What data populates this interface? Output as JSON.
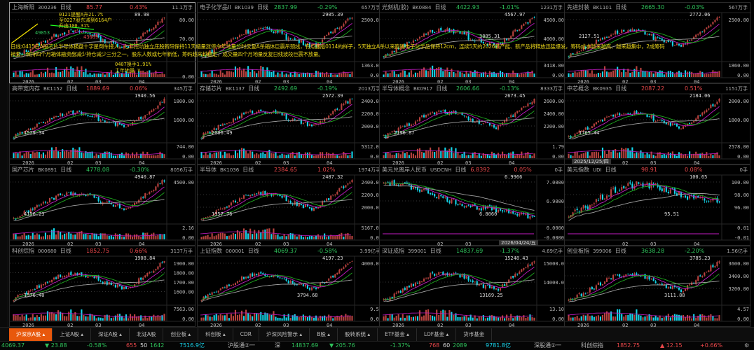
{
  "colors": {
    "up": "#e8474a",
    "down": "#2fc25b",
    "candle_up": "#b8423f",
    "candle_down": "#14d6ea",
    "ma1": "#c21bc2",
    "ma2": "#1fa81f",
    "ma3": "#a0a0a0",
    "accent": "#e8580c"
  },
  "overlay_note": {
    "line1": "日线:0415日A股芯片半导体横盘十字星倒车接人，七年挖坑独立庄股新阳保持11天缩量涨停今年地量分时反复A杀箱体巨震吊颈线，有点翻版0114的样子，5天独立A杀以来跑输电子化学品保持12cm，连续5天的2026新产能、新产品将释放迅猛爆发，筹码成本越来越高、越来越集中，2成筹码",
    "line2": "被套，保持四个月箱体融资盘减少持仓减少三分之一，股东人数或七年新低，筹码越来越稳定，成交量四个月地量反复日线波段巨震不放量。"
  },
  "panels": [
    {
      "name": "上海新阳",
      "code": "300236",
      "period": "日线",
      "price": "85.77",
      "pct": "0.43%",
      "dir": "up",
      "vol": "11.1万手",
      "yticks": [
        "80.00",
        "70.00"
      ],
      "vticks": [
        "0.00"
      ],
      "hi": "89.98",
      "lo": "",
      "xlabels": [
        "2026",
        "02",
        "03",
        "04"
      ],
      "selected": true,
      "notes": [
        "0121提醒A升21.7%",
        "至0227股东减到6164户",
        "升由100.31%",
        "49853",
        "43689",
        "0407换手1.91%",
        "主年地量 V"
      ]
    },
    {
      "name": "电子化学品II",
      "code": "BK1039",
      "period": "日线",
      "price": "2837.99",
      "pct": "-0.29%",
      "dir": "down",
      "vol": "657万手",
      "yticks": [
        "2500.00"
      ],
      "vticks": [
        "1363.00",
        "0.00"
      ],
      "hi": "2905.39",
      "lo": "",
      "xlabels": [
        "2026",
        "02",
        "03",
        "04"
      ]
    },
    {
      "name": "光刻机(胶)",
      "code": "BK0884",
      "period": "日线",
      "price": "4422.93",
      "pct": "-1.01%",
      "dir": "down",
      "vol": "1231万手",
      "yticks": [
        "4500.00",
        "4000.00"
      ],
      "vticks": [
        "3418.00",
        "0.00"
      ],
      "hi": "4567.97",
      "lo": "3885.31",
      "xlabels": [
        "2026",
        "02",
        "03",
        "04"
      ]
    },
    {
      "name": "先进封装",
      "code": "BK1101",
      "period": "日线",
      "price": "2665.30",
      "pct": "-0.03%",
      "dir": "down",
      "vol": "567万手",
      "yticks": [
        "2500.00"
      ],
      "vticks": [
        "1860.00",
        "0.00"
      ],
      "hi": "2772.06",
      "lo": "2127.51",
      "xlabels": [
        "2026",
        "02",
        "03",
        "04"
      ]
    },
    {
      "name": "高带宽内存",
      "code": "BK1152",
      "period": "日线",
      "price": "1889.69",
      "pct": "0.06%",
      "dir": "up",
      "vol": "345万手",
      "yticks": [
        "1800.00",
        "1600.00"
      ],
      "vticks": [
        "744.00",
        "0.00"
      ],
      "hi": "1940.56",
      "lo": "1529.34",
      "xlabels": [
        "2026",
        "02",
        "03",
        "04"
      ]
    },
    {
      "name": "存储芯片",
      "code": "BK1137",
      "period": "日线",
      "price": "2492.69",
      "pct": "-0.19%",
      "dir": "down",
      "vol": "2013万手",
      "yticks": [
        "2400.00",
        "2200.00",
        "2000.00"
      ],
      "vticks": [
        "5312.00",
        "0.00"
      ],
      "hi": "2572.39",
      "lo": "2006.49",
      "xlabels": [
        "2026",
        "02",
        "03",
        "04"
      ]
    },
    {
      "name": "半导体概念",
      "code": "BK0917",
      "period": "日线",
      "price": "2606.66",
      "pct": "-0.13%",
      "dir": "down",
      "vol": "8333万手",
      "yticks": [
        "2600.00",
        "2400.00",
        "2200.00"
      ],
      "vticks": [
        "1.79",
        "0.00"
      ],
      "hi": "2673.45",
      "lo": "2196.87",
      "xlabels": [
        "2026",
        "02",
        "03",
        "04"
      ]
    },
    {
      "name": "中芯概念",
      "code": "BK0935",
      "period": "日线",
      "price": "2087.22",
      "pct": "0.51%",
      "dir": "up",
      "vol": "1151万手",
      "yticks": [
        "2000.00",
        "1800.00"
      ],
      "vticks": [
        "2578.00",
        "0.00"
      ],
      "hi": "2184.06",
      "lo": "1765.44",
      "xlabels": [
        "",
        "02",
        "03",
        "04"
      ],
      "tooltip": "2025/12/25/四"
    },
    {
      "name": "国产芯片",
      "code": "BK0891",
      "period": "日线",
      "price": "4778.08",
      "pct": "-0.30%",
      "dir": "down",
      "vol": "8056万手",
      "yticks": [
        "4500.00"
      ],
      "vticks": [
        "2.16",
        "0.00"
      ],
      "hi": "4940.87",
      "lo": "4156.23",
      "xlabels": [
        "2026",
        "02",
        "03",
        "04"
      ]
    },
    {
      "name": "半导体",
      "code": "BK1036",
      "period": "日线",
      "price": "2384.65",
      "pct": "1.02%",
      "dir": "up",
      "vol": "1974万手",
      "yticks": [
        "2400.00",
        "2200.00",
        "2000.00"
      ],
      "vticks": [
        "5167.00",
        "0.00"
      ],
      "hi": "2487.32",
      "lo": "1957.76",
      "xlabels": [
        "2026",
        "02",
        "03",
        "04"
      ]
    },
    {
      "name": "美元兑离岸人民币",
      "code": "USDCNH",
      "period": "日线",
      "price": "6.8392",
      "pct": "0.05%",
      "dir": "up",
      "vol": "0手",
      "yticks": [
        "7.0000",
        "6.9000"
      ],
      "vticks": [
        "0.0000",
        "-0.0000"
      ],
      "hi": "6.9966",
      "lo": "6.8060",
      "xlabels": [
        "",
        "02",
        "03",
        ""
      ],
      "tooltip": "2026/04/24/五",
      "flat": true
    },
    {
      "name": "美元指数",
      "code": "UDI",
      "period": "日线",
      "price": "98.91",
      "pct": "0.08%",
      "dir": "up",
      "vol": "0手",
      "yticks": [
        "100.00",
        "98.00",
        "96.00"
      ],
      "vticks": [
        "0.01",
        "-0.01"
      ],
      "hi": "100.65",
      "lo": "95.51",
      "xlabels": [
        "",
        "02",
        "03",
        "04"
      ],
      "flat": true
    },
    {
      "name": "科创综指",
      "code": "000680",
      "period": "日线",
      "price": "1852.75",
      "pct": "0.66%",
      "dir": "up",
      "vol": "3137万手",
      "yticks": [
        "1900.00",
        "1800.00",
        "1700.00",
        "1600.00"
      ],
      "vticks": [
        "7563.00",
        "0.00"
      ],
      "hi": "1908.84",
      "lo": "1576.40",
      "xlabels": [
        "2026",
        "02",
        "03",
        "04"
      ]
    },
    {
      "name": "上证指数",
      "code": "000001",
      "period": "日线",
      "price": "4069.37",
      "pct": "-0.58%",
      "dir": "down",
      "vol": "3.99亿手",
      "yticks": [
        "4000.00"
      ],
      "vticks": [
        "9.53",
        "0.00"
      ],
      "hi": "4197.23",
      "lo": "3794.68",
      "xlabels": [
        "2026",
        "02",
        "03",
        "04"
      ]
    },
    {
      "name": "深证成指",
      "code": "399001",
      "period": "日线",
      "price": "14837.69",
      "pct": "-1.37%",
      "dir": "down",
      "vol": "4.69亿手",
      "yticks": [
        "15000.0",
        "14000.0"
      ],
      "vticks": [
        "13.10",
        "0.00"
      ],
      "hi": "15248.43",
      "lo": "13169.25",
      "xlabels": [
        "2026",
        "02",
        "03",
        "04"
      ]
    },
    {
      "name": "创业板指",
      "code": "399006",
      "period": "日线",
      "price": "3638.28",
      "pct": "-2.20%",
      "dir": "down",
      "vol": "1.56亿手",
      "yticks": [
        "3600.00",
        "3400.00",
        "3200.00"
      ],
      "vticks": [
        "4.57",
        "0.00"
      ],
      "hi": "3785.23",
      "lo": "3111.88",
      "xlabels": [
        "2026",
        "02",
        "03",
        "04"
      ]
    }
  ],
  "tabs": [
    {
      "label": "沪深京A股 ▴",
      "active": true
    },
    {
      "label": "上证A股 ▴"
    },
    {
      "label": "深证A股 ▴"
    },
    {
      "label": "北证A股"
    },
    {
      "label": "创业板 ▴"
    },
    {
      "label": "科创板 ▴"
    },
    {
      "label": "CDR"
    },
    {
      "label": "沪深风险警示 ▴"
    },
    {
      "label": "B股 ▴"
    },
    {
      "label": "股转系统 ▴"
    },
    {
      "label": "ETF基金 ▴"
    },
    {
      "label": "LOF基金 ▴"
    },
    {
      "label": "货币基金"
    }
  ],
  "status": {
    "sh_index": "4069.37",
    "sh_change": "▼ 23.88",
    "sh_pct": "-0.58%",
    "sh_up": "655",
    "sh_flat": "50",
    "sh_down": "1642",
    "sh_amount": "7516.9亿",
    "sh_connect": "沪股通②一",
    "sz_label": "深",
    "sz_index": "14837.69",
    "sz_change": "▼ 205.76",
    "sz_pct": "-1.37%",
    "sz_up": "768",
    "sz_flat": "60",
    "sz_down": "2089",
    "sz_amount": "9781.8亿",
    "sz_connect": "深股通②一",
    "kc_label": "科创综指",
    "kc_index": "1852.75",
    "kc_change": "▲ 12.15",
    "kc_pct": "+0.66%",
    "settings_icon": "gear-icon"
  }
}
